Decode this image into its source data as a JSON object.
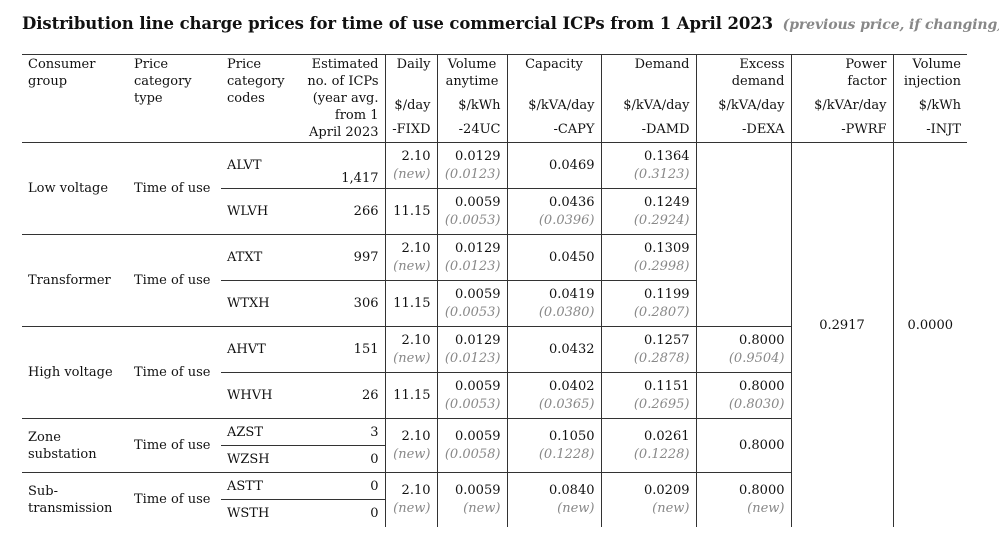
{
  "title": {
    "main": "Distribution line charge prices for time of use commercial ICPs from 1 April 2023",
    "note": "(previous price, if changing)"
  },
  "headers": {
    "consumer_group": [
      "Consumer",
      "group"
    ],
    "price_category_type": [
      "Price",
      "category",
      "type"
    ],
    "price_category_codes": [
      "Price",
      "category",
      "codes"
    ],
    "estimated_icps": [
      "Estimated",
      "no. of ICPs",
      "(year avg.",
      "from 1",
      "April 2023"
    ],
    "daily": {
      "name": "Daily",
      "unit": "$/day",
      "code": "-FIXD"
    },
    "volume_anytime": {
      "name": [
        "Volume",
        "anytime"
      ],
      "unit": "$/kWh",
      "code": "-24UC"
    },
    "capacity": {
      "name": "Capacity",
      "unit": "$/kVA/day",
      "code": "-CAPY"
    },
    "demand": {
      "name": "Demand",
      "unit": "$/kVA/day",
      "code": "-DAMD"
    },
    "excess_demand": {
      "name": [
        "Excess",
        "demand"
      ],
      "unit": "$/kVA/day",
      "code": "-DEXA"
    },
    "power_factor": {
      "name": [
        "Power",
        "factor"
      ],
      "unit": "$/kVAr/day",
      "code": "-PWRF"
    },
    "volume_injection": {
      "name": [
        "Volume",
        "injection"
      ],
      "unit": "$/kWh",
      "code": "-INJT"
    }
  },
  "shared": {
    "power_factor": "0.2917",
    "volume_injection": "0.0000"
  },
  "groups": [
    {
      "name": [
        "Low voltage"
      ],
      "type": "Time of use",
      "rows": [
        {
          "code": "ALVT",
          "icps": "1,417",
          "daily": "2.10",
          "daily_prev": "(new)",
          "vol": "0.0129",
          "vol_prev": "(0.0123)",
          "cap": "0.0469",
          "cap_prev": "",
          "dem": "0.1364",
          "dem_prev": "(0.3123)",
          "exc": "",
          "exc_prev": ""
        },
        {
          "code": "WLVH",
          "icps": "266",
          "daily": "11.15",
          "daily_prev": "",
          "vol": "0.0059",
          "vol_prev": "(0.0053)",
          "cap": "0.0436",
          "cap_prev": "(0.0396)",
          "dem": "0.1249",
          "dem_prev": "(0.2924)",
          "exc": "",
          "exc_prev": ""
        }
      ]
    },
    {
      "name": [
        "Transformer"
      ],
      "type": "Time of use",
      "rows": [
        {
          "code": "ATXT",
          "icps": "997",
          "daily": "2.10",
          "daily_prev": "(new)",
          "vol": "0.0129",
          "vol_prev": "(0.0123)",
          "cap": "0.0450",
          "cap_prev": "",
          "dem": "0.1309",
          "dem_prev": "(0.2998)",
          "exc": "",
          "exc_prev": ""
        },
        {
          "code": "WTXH",
          "icps": "306",
          "daily": "11.15",
          "daily_prev": "",
          "vol": "0.0059",
          "vol_prev": "(0.0053)",
          "cap": "0.0419",
          "cap_prev": "(0.0380)",
          "dem": "0.1199",
          "dem_prev": "(0.2807)",
          "exc": "",
          "exc_prev": ""
        }
      ]
    },
    {
      "name": [
        "High voltage"
      ],
      "type": "Time of use",
      "rows": [
        {
          "code": "AHVT",
          "icps": "151",
          "daily": "2.10",
          "daily_prev": "(new)",
          "vol": "0.0129",
          "vol_prev": "(0.0123)",
          "cap": "0.0432",
          "cap_prev": "",
          "dem": "0.1257",
          "dem_prev": "(0.2878)",
          "exc": "0.8000",
          "exc_prev": "(0.9504)"
        },
        {
          "code": "WHVH",
          "icps": "26",
          "daily": "11.15",
          "daily_prev": "",
          "vol": "0.0059",
          "vol_prev": "(0.0053)",
          "cap": "0.0402",
          "cap_prev": "(0.0365)",
          "dem": "0.1151",
          "dem_prev": "(0.2695)",
          "exc": "0.8000",
          "exc_prev": "(0.8030)"
        }
      ]
    },
    {
      "name": [
        "Zone",
        "substation"
      ],
      "type": "Time of use",
      "codes": [
        "AZST",
        "WZSH"
      ],
      "icps": [
        "3",
        "0"
      ],
      "daily": "2.10",
      "daily_prev": "(new)",
      "vol": "0.0059",
      "vol_prev": "(0.0058)",
      "cap": "0.1050",
      "cap_prev": "(0.1228)",
      "dem": "0.0261",
      "dem_prev": "(0.1228)",
      "exc": "0.8000",
      "exc_prev": ""
    },
    {
      "name": [
        "Sub-",
        "transmission"
      ],
      "type": "Time of use",
      "codes": [
        "ASTT",
        "WSTH"
      ],
      "icps": [
        "0",
        "0"
      ],
      "daily": "2.10",
      "daily_prev": "(new)",
      "vol": "0.0059",
      "vol_prev": "(new)",
      "cap": "0.0840",
      "cap_prev": "(new)",
      "dem": "0.0209",
      "dem_prev": "(new)",
      "exc": "0.8000",
      "exc_prev": "(new)"
    }
  ]
}
